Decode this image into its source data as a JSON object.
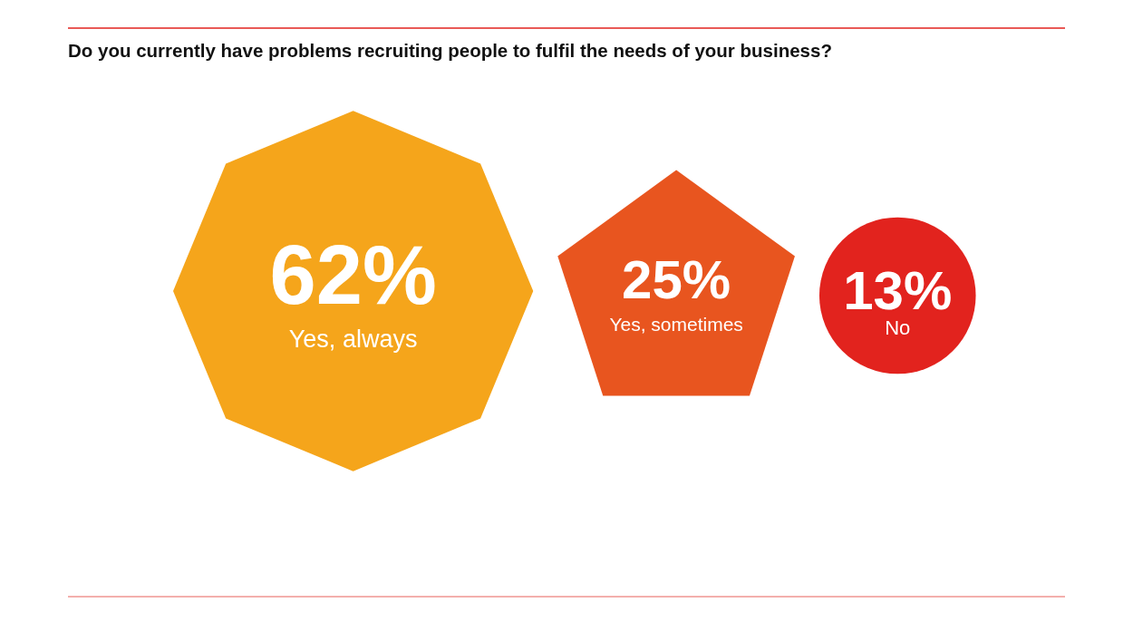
{
  "chart_data": {
    "type": "other",
    "title": "Do you currently have problems recruiting people to fulfil the needs of your business?",
    "categories": [
      "Yes, always",
      "Yes, sometimes",
      "No"
    ],
    "values": [
      62,
      25,
      13
    ],
    "value_labels": [
      "62%",
      "25%",
      "13%"
    ],
    "colors": [
      "#f5a51b",
      "#e8551f",
      "#e2231e"
    ]
  }
}
